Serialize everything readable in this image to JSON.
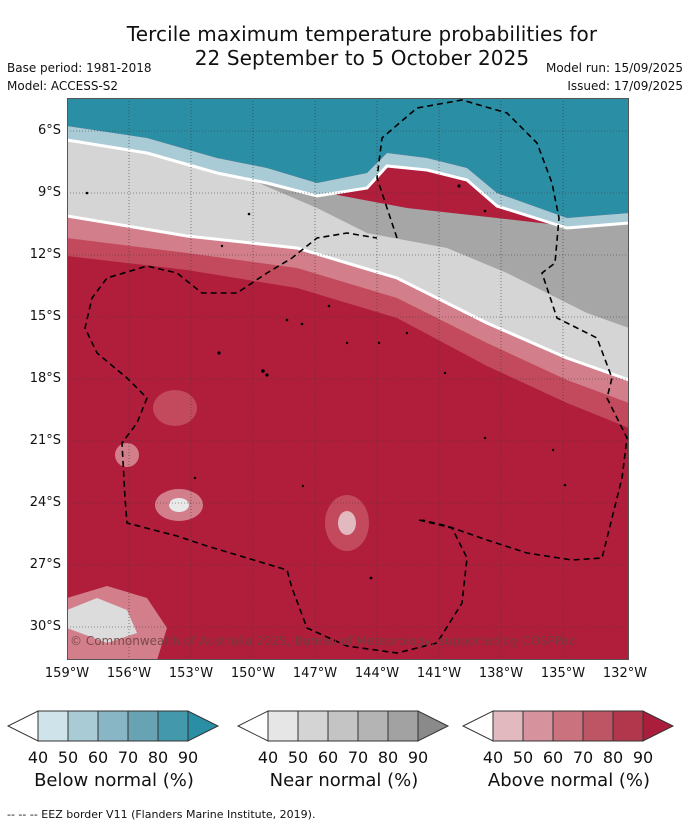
{
  "title_line1": "Tercile maximum temperature probabilities for",
  "title_line2": "22 September to 5 October 2025",
  "base_period": "Base period: 1981-2018",
  "model": "Model: ACCESS-S2",
  "model_run": "Model run: 15/09/2025",
  "issued": "Issued: 17/09/2025",
  "lat_labels": [
    "6°S",
    "9°S",
    "12°S",
    "15°S",
    "18°S",
    "21°S",
    "24°S",
    "27°S",
    "30°S"
  ],
  "lon_labels": [
    "159°W",
    "156°W",
    "153°W",
    "150°W",
    "147°W",
    "144°W",
    "141°W",
    "138°W",
    "135°W",
    "132°W"
  ],
  "copyright": "© Commonwealth of Australia 2025, Bureau of Meteorology, supported by COSPPac",
  "legends": [
    {
      "caption": "Below normal (%)",
      "ticks": [
        "40",
        "50",
        "60",
        "70",
        "80",
        "90"
      ],
      "colors": [
        "#ffffff",
        "#cfe3ea",
        "#a9cbd6",
        "#88b6c4",
        "#68a3b4",
        "#4399ab",
        "#2a8ea4"
      ]
    },
    {
      "caption": "Near normal (%)",
      "ticks": [
        "40",
        "50",
        "60",
        "70",
        "80",
        "90"
      ],
      "colors": [
        "#ffffff",
        "#e6e6e6",
        "#d4d4d4",
        "#c4c4c4",
        "#b4b4b4",
        "#a2a2a2",
        "#8a8a8a"
      ]
    },
    {
      "caption": "Above normal (%)",
      "ticks": [
        "40",
        "50",
        "60",
        "70",
        "80",
        "90"
      ],
      "colors": [
        "#ffffff",
        "#e3b9c0",
        "#d6939d",
        "#ca727e",
        "#be5564",
        "#b3374c",
        "#aa1e3c"
      ]
    }
  ],
  "footnote": "-- -- -- EEZ border V11 (Flanders Marine Institute, 2019)."
}
